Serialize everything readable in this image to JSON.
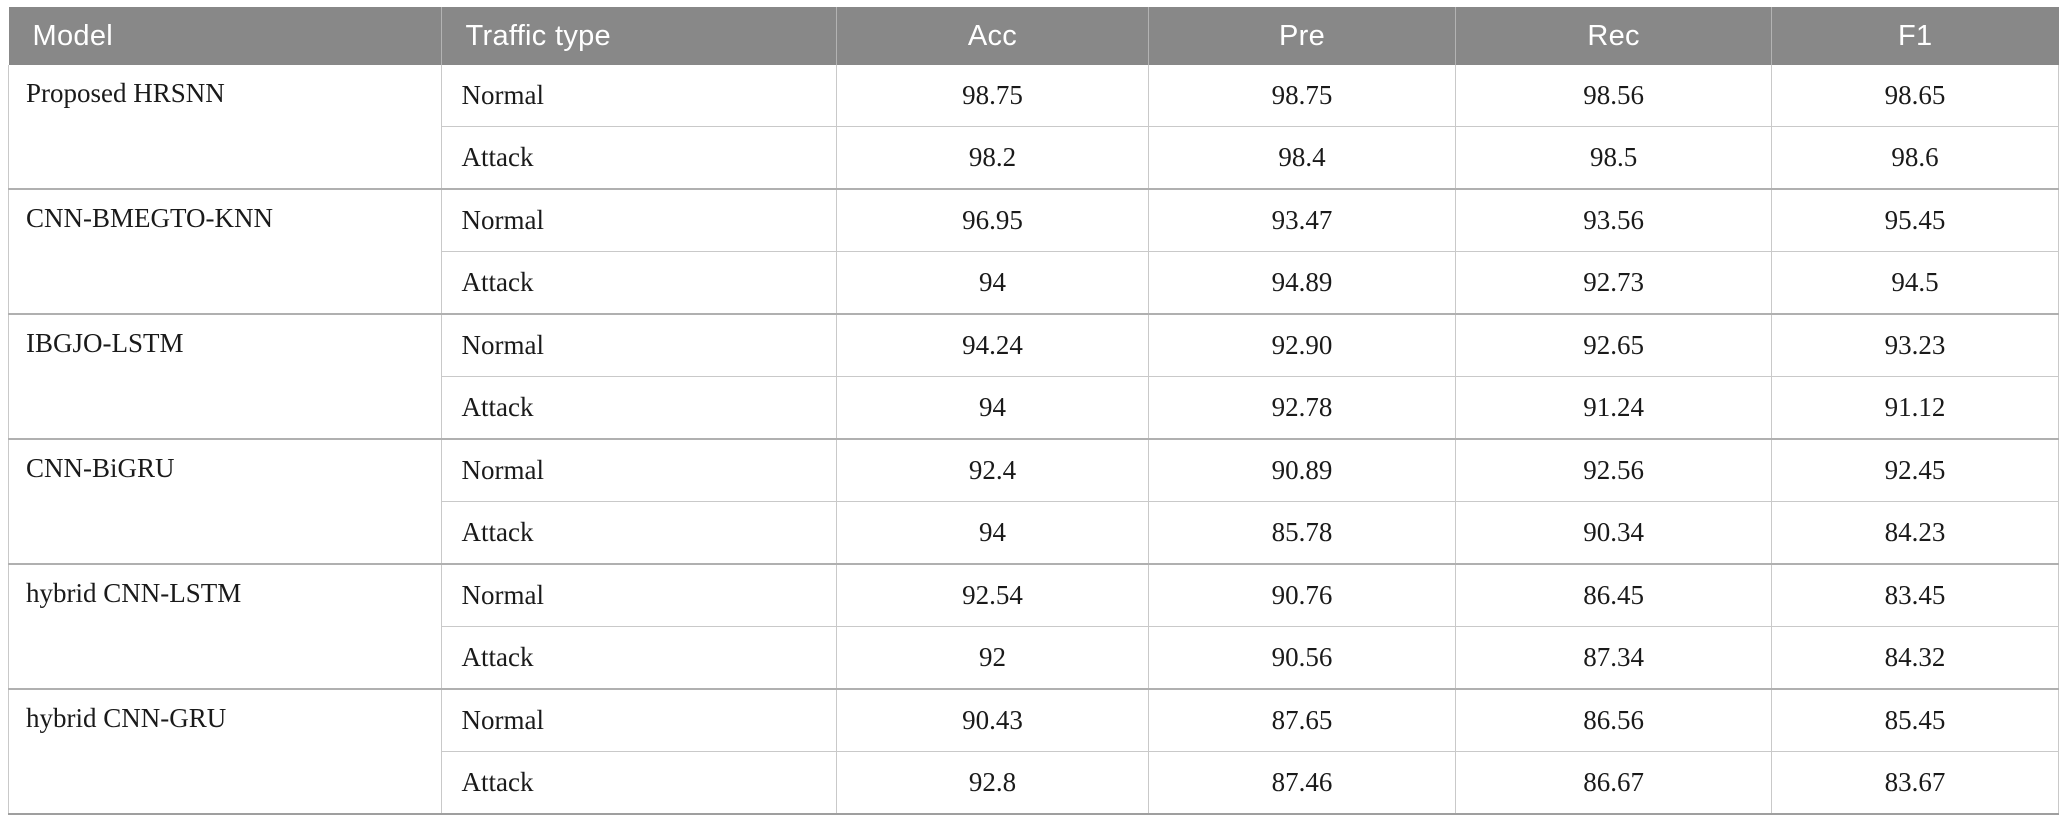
{
  "colors": {
    "header_bg": "#888888",
    "header_text": "#ffffff",
    "header_separator": "#b3b3b3",
    "grid_line": "#c9c9c9",
    "group_line": "#b0b0b0",
    "bottom_line": "#9f9f9f",
    "body_text": "#1a1a1a"
  },
  "table": {
    "columns": [
      "Model",
      "Traffic type",
      "Acc",
      "Pre",
      "Rec",
      "F1"
    ],
    "groups": [
      {
        "model": "Proposed HRSNN",
        "rows": [
          {
            "traffic": "Normal",
            "acc": "98.75",
            "pre": "98.75",
            "rec": "98.56",
            "f1": "98.65"
          },
          {
            "traffic": "Attack",
            "acc": "98.2",
            "pre": "98.4",
            "rec": "98.5",
            "f1": "98.6"
          }
        ]
      },
      {
        "model": "CNN-BMEGTO-KNN",
        "rows": [
          {
            "traffic": "Normal",
            "acc": "96.95",
            "pre": "93.47",
            "rec": "93.56",
            "f1": "95.45"
          },
          {
            "traffic": "Attack",
            "acc": "94",
            "pre": "94.89",
            "rec": "92.73",
            "f1": "94.5"
          }
        ]
      },
      {
        "model": "IBGJO-LSTM",
        "rows": [
          {
            "traffic": "Normal",
            "acc": "94.24",
            "pre": "92.90",
            "rec": "92.65",
            "f1": "93.23"
          },
          {
            "traffic": "Attack",
            "acc": "94",
            "pre": "92.78",
            "rec": "91.24",
            "f1": "91.12"
          }
        ]
      },
      {
        "model": "CNN-BiGRU",
        "rows": [
          {
            "traffic": "Normal",
            "acc": "92.4",
            "pre": "90.89",
            "rec": "92.56",
            "f1": "92.45"
          },
          {
            "traffic": "Attack",
            "acc": "94",
            "pre": "85.78",
            "rec": "90.34",
            "f1": "84.23"
          }
        ]
      },
      {
        "model": "hybrid CNN-LSTM",
        "rows": [
          {
            "traffic": "Normal",
            "acc": "92.54",
            "pre": "90.76",
            "rec": "86.45",
            "f1": "83.45"
          },
          {
            "traffic": "Attack",
            "acc": "92",
            "pre": "90.56",
            "rec": "87.34",
            "f1": "84.32"
          }
        ]
      },
      {
        "model": "hybrid CNN-GRU",
        "rows": [
          {
            "traffic": "Normal",
            "acc": "90.43",
            "pre": "87.65",
            "rec": "86.56",
            "f1": "85.45"
          },
          {
            "traffic": "Attack",
            "acc": "92.8",
            "pre": "87.46",
            "rec": "86.67",
            "f1": "83.67"
          }
        ]
      }
    ]
  },
  "chart_data": {
    "type": "table",
    "title": "",
    "columns": [
      "Model",
      "Traffic type",
      "Acc",
      "Pre",
      "Rec",
      "F1"
    ],
    "rows": [
      [
        "Proposed HRSNN",
        "Normal",
        98.75,
        98.75,
        98.56,
        98.65
      ],
      [
        "Proposed HRSNN",
        "Attack",
        98.2,
        98.4,
        98.5,
        98.6
      ],
      [
        "CNN-BMEGTO-KNN",
        "Normal",
        96.95,
        93.47,
        93.56,
        95.45
      ],
      [
        "CNN-BMEGTO-KNN",
        "Attack",
        94,
        94.89,
        92.73,
        94.5
      ],
      [
        "IBGJO-LSTM",
        "Normal",
        94.24,
        92.9,
        92.65,
        93.23
      ],
      [
        "IBGJO-LSTM",
        "Attack",
        94,
        92.78,
        91.24,
        91.12
      ],
      [
        "CNN-BiGRU",
        "Normal",
        92.4,
        90.89,
        92.56,
        92.45
      ],
      [
        "CNN-BiGRU",
        "Attack",
        94,
        85.78,
        90.34,
        84.23
      ],
      [
        "hybrid CNN-LSTM",
        "Normal",
        92.54,
        90.76,
        86.45,
        83.45
      ],
      [
        "hybrid CNN-LSTM",
        "Attack",
        92,
        90.56,
        87.34,
        84.32
      ],
      [
        "hybrid CNN-GRU",
        "Normal",
        90.43,
        87.65,
        86.56,
        85.45
      ],
      [
        "hybrid CNN-GRU",
        "Attack",
        92.8,
        87.46,
        86.67,
        83.67
      ]
    ]
  }
}
